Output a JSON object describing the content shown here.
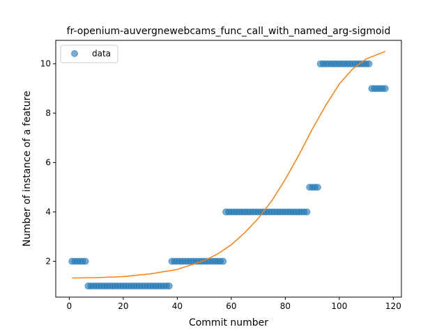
{
  "chart_data": {
    "type": "scatter",
    "title": "fr-openium-auvergnewebcams_func_call_with_named_arg-sigmoid",
    "xlabel": "Commit number",
    "ylabel": "Number of instance of a feature",
    "xlim": [
      -5,
      123
    ],
    "ylim": [
      0.55,
      10.95
    ],
    "xticks": [
      0,
      20,
      40,
      60,
      80,
      100,
      120
    ],
    "yticks": [
      2,
      4,
      6,
      8,
      10
    ],
    "grid": false,
    "legend": {
      "position": "top-left",
      "entries": [
        "data"
      ]
    },
    "series": [
      {
        "name": "data",
        "kind": "scatter",
        "color": "#1f77b4",
        "points": [
          [
            1,
            2
          ],
          [
            2,
            2
          ],
          [
            3,
            2
          ],
          [
            4,
            2
          ],
          [
            5,
            2
          ],
          [
            6,
            2
          ],
          [
            7,
            1
          ],
          [
            8,
            1
          ],
          [
            9,
            1
          ],
          [
            10,
            1
          ],
          [
            11,
            1
          ],
          [
            12,
            1
          ],
          [
            13,
            1
          ],
          [
            14,
            1
          ],
          [
            15,
            1
          ],
          [
            16,
            1
          ],
          [
            17,
            1
          ],
          [
            18,
            1
          ],
          [
            19,
            1
          ],
          [
            20,
            1
          ],
          [
            21,
            1
          ],
          [
            22,
            1
          ],
          [
            23,
            1
          ],
          [
            24,
            1
          ],
          [
            25,
            1
          ],
          [
            26,
            1
          ],
          [
            27,
            1
          ],
          [
            28,
            1
          ],
          [
            29,
            1
          ],
          [
            30,
            1
          ],
          [
            31,
            1
          ],
          [
            32,
            1
          ],
          [
            33,
            1
          ],
          [
            34,
            1
          ],
          [
            35,
            1
          ],
          [
            36,
            1
          ],
          [
            37,
            1
          ],
          [
            38,
            2
          ],
          [
            39,
            2
          ],
          [
            40,
            2
          ],
          [
            41,
            2
          ],
          [
            42,
            2
          ],
          [
            43,
            2
          ],
          [
            44,
            2
          ],
          [
            45,
            2
          ],
          [
            46,
            2
          ],
          [
            47,
            2
          ],
          [
            48,
            2
          ],
          [
            49,
            2
          ],
          [
            50,
            2
          ],
          [
            51,
            2
          ],
          [
            52,
            2
          ],
          [
            53,
            2
          ],
          [
            54,
            2
          ],
          [
            55,
            2
          ],
          [
            56,
            2
          ],
          [
            57,
            2
          ],
          [
            58,
            4
          ],
          [
            59,
            4
          ],
          [
            60,
            4
          ],
          [
            61,
            4
          ],
          [
            62,
            4
          ],
          [
            63,
            4
          ],
          [
            64,
            4
          ],
          [
            65,
            4
          ],
          [
            66,
            4
          ],
          [
            67,
            4
          ],
          [
            68,
            4
          ],
          [
            69,
            4
          ],
          [
            70,
            4
          ],
          [
            71,
            4
          ],
          [
            72,
            4
          ],
          [
            73,
            4
          ],
          [
            74,
            4
          ],
          [
            75,
            4
          ],
          [
            76,
            4
          ],
          [
            77,
            4
          ],
          [
            78,
            4
          ],
          [
            79,
            4
          ],
          [
            80,
            4
          ],
          [
            81,
            4
          ],
          [
            82,
            4
          ],
          [
            83,
            4
          ],
          [
            84,
            4
          ],
          [
            85,
            4
          ],
          [
            86,
            4
          ],
          [
            87,
            4
          ],
          [
            88,
            4
          ],
          [
            89,
            5
          ],
          [
            90,
            5
          ],
          [
            91,
            5
          ],
          [
            92,
            5
          ],
          [
            93,
            10
          ],
          [
            94,
            10
          ],
          [
            95,
            10
          ],
          [
            96,
            10
          ],
          [
            97,
            10
          ],
          [
            98,
            10
          ],
          [
            99,
            10
          ],
          [
            100,
            10
          ],
          [
            101,
            10
          ],
          [
            102,
            10
          ],
          [
            103,
            10
          ],
          [
            104,
            10
          ],
          [
            105,
            10
          ],
          [
            106,
            10
          ],
          [
            107,
            10
          ],
          [
            108,
            10
          ],
          [
            109,
            10
          ],
          [
            110,
            10
          ],
          [
            111,
            10
          ],
          [
            112,
            9
          ],
          [
            113,
            9
          ],
          [
            114,
            9
          ],
          [
            115,
            9
          ],
          [
            116,
            9
          ],
          [
            117,
            9
          ]
        ]
      },
      {
        "kind": "line",
        "color": "#ff7f0e",
        "points": [
          [
            1,
            1.32
          ],
          [
            10,
            1.34
          ],
          [
            20,
            1.38
          ],
          [
            30,
            1.49
          ],
          [
            40,
            1.67
          ],
          [
            50,
            2.03
          ],
          [
            55,
            2.3
          ],
          [
            60,
            2.67
          ],
          [
            65,
            3.16
          ],
          [
            70,
            3.74
          ],
          [
            75,
            4.45
          ],
          [
            80,
            5.32
          ],
          [
            85,
            6.3
          ],
          [
            90,
            7.35
          ],
          [
            95,
            8.32
          ],
          [
            100,
            9.18
          ],
          [
            105,
            9.8
          ],
          [
            110,
            10.2
          ],
          [
            117,
            10.5
          ]
        ]
      }
    ]
  }
}
